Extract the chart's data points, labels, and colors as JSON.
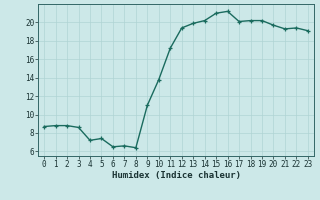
{
  "x": [
    0,
    1,
    2,
    3,
    4,
    5,
    6,
    7,
    8,
    9,
    10,
    11,
    12,
    13,
    14,
    15,
    16,
    17,
    18,
    19,
    20,
    21,
    22,
    23
  ],
  "y": [
    8.7,
    8.8,
    8.8,
    8.6,
    7.2,
    7.4,
    6.5,
    6.6,
    6.4,
    11.0,
    13.8,
    17.2,
    19.4,
    19.9,
    20.2,
    21.0,
    21.2,
    20.1,
    20.2,
    20.2,
    19.7,
    19.3,
    19.4,
    19.1
  ],
  "xlim": [
    -0.5,
    23.5
  ],
  "ylim": [
    5.5,
    22.0
  ],
  "yticks": [
    6,
    8,
    10,
    12,
    14,
    16,
    18,
    20
  ],
  "xticks": [
    0,
    1,
    2,
    3,
    4,
    5,
    6,
    7,
    8,
    9,
    10,
    11,
    12,
    13,
    14,
    15,
    16,
    17,
    18,
    19,
    20,
    21,
    22,
    23
  ],
  "xlabel": "Humidex (Indice chaleur)",
  "line_color": "#1a6b5e",
  "marker": "+",
  "bg_color": "#cce8e8",
  "grid_color": "#b0d4d4",
  "axis_color": "#336666",
  "text_color": "#1a3333",
  "xlabel_fontsize": 6.5,
  "tick_fontsize": 5.5,
  "linewidth": 1.0,
  "markersize": 3.5
}
